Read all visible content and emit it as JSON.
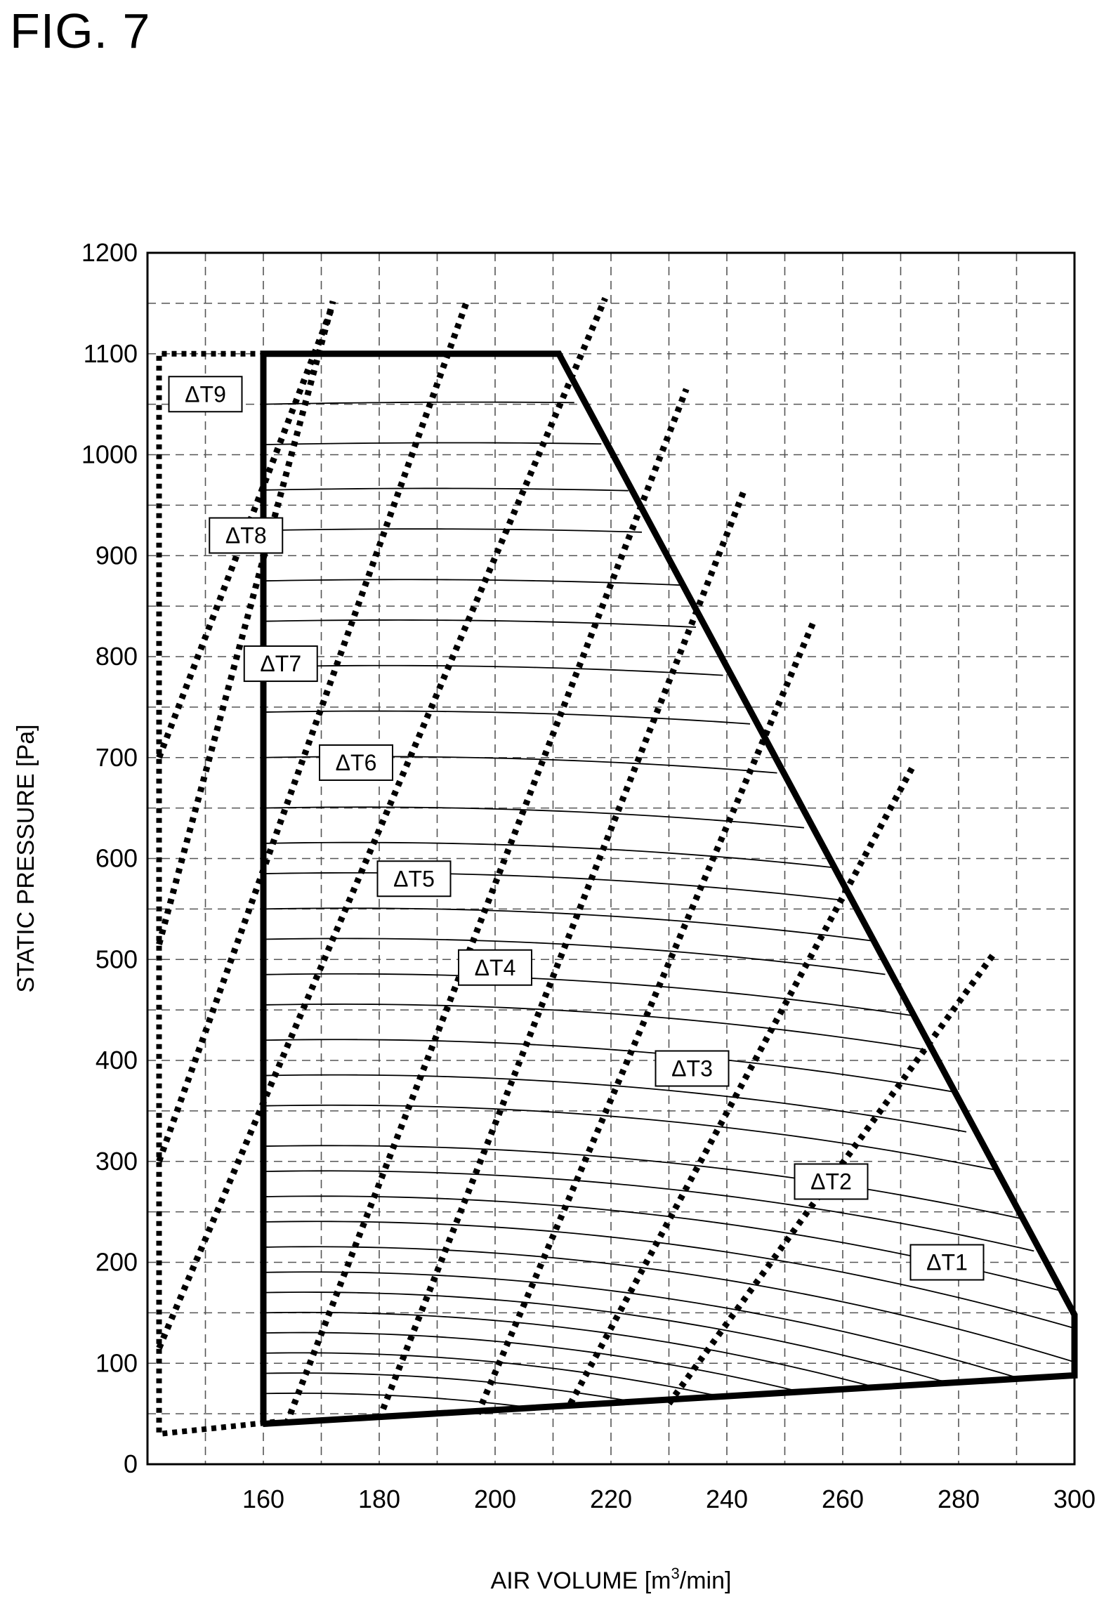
{
  "figure": {
    "label": "FIG. 7"
  },
  "colors": {
    "ink": "#000000",
    "grid": "#555555",
    "background": "#ffffff"
  },
  "chart_data": {
    "type": "line",
    "title": "",
    "xlabel_parts": [
      "AIR VOLUME [m",
      "3",
      "/min]"
    ],
    "ylabel": "STATIC PRESSURE [Pa]",
    "xlim": [
      140,
      300
    ],
    "ylim": [
      0,
      1200
    ],
    "x_ticks": [
      160,
      180,
      200,
      220,
      240,
      260,
      280,
      300
    ],
    "y_ticks": [
      0,
      100,
      200,
      300,
      400,
      500,
      600,
      700,
      800,
      900,
      1000,
      1100,
      1200
    ],
    "grid": true,
    "grid_style": "dashed",
    "x_minor_grid": [
      150,
      170,
      190,
      210,
      230,
      250,
      270,
      290
    ],
    "y_minor_grid": [
      50,
      150,
      250,
      350,
      450,
      550,
      650,
      750,
      850,
      950,
      1050,
      1150
    ],
    "operating_region": {
      "style": "thick-solid",
      "points": [
        [
          160,
          40
        ],
        [
          160,
          1100
        ],
        [
          211,
          1100
        ],
        [
          300,
          148
        ],
        [
          300,
          88
        ],
        [
          160,
          40
        ]
      ]
    },
    "outer_boundary": {
      "style": "dotted",
      "points": [
        [
          162,
          42
        ],
        [
          142,
          30
        ],
        [
          142,
          1100
        ],
        [
          160,
          1100
        ]
      ]
    },
    "temperature_lines": [
      {
        "label": "ΔT1",
        "points": [
          [
            230,
            60
          ],
          [
            286,
            505
          ]
        ],
        "label_at": [
          278,
          200
        ]
      },
      {
        "label": "ΔT2",
        "points": [
          [
            213,
            60
          ],
          [
            272,
            690
          ]
        ],
        "label_at": [
          258,
          280
        ]
      },
      {
        "label": "ΔT3",
        "points": [
          [
            197,
            50
          ],
          [
            255,
            835
          ]
        ],
        "label_at": [
          234,
          392
        ]
      },
      {
        "label": "ΔT4",
        "points": [
          [
            180,
            45
          ],
          [
            243,
            965
          ]
        ],
        "label_at": [
          200,
          492
        ]
      },
      {
        "label": "ΔT5",
        "points": [
          [
            164,
            40
          ],
          [
            233,
            1065
          ]
        ],
        "label_at": [
          186,
          580
        ]
      },
      {
        "label": "ΔT6",
        "points": [
          [
            142,
            115
          ],
          [
            219,
            1155
          ]
        ],
        "label_at": [
          176,
          695
        ]
      },
      {
        "label": "ΔT7",
        "points": [
          [
            142,
            300
          ],
          [
            195,
            1150
          ]
        ],
        "label_at": [
          163,
          793
        ]
      },
      {
        "label": "ΔT8",
        "points": [
          [
            142,
            515
          ],
          [
            172,
            1152
          ]
        ],
        "label_at": [
          157,
          920
        ]
      },
      {
        "label": "ΔT9",
        "points": [
          [
            142,
            700
          ],
          [
            172,
            1148
          ]
        ],
        "label_at": [
          150,
          1060
        ]
      }
    ],
    "fan_curves": {
      "note": "family of thin curves filling the operating region",
      "start_x": 160,
      "start_pressures": [
        1050,
        1010,
        965,
        925,
        875,
        835,
        790,
        745,
        700,
        650,
        615,
        585,
        550,
        520,
        485,
        455,
        420,
        385,
        355,
        315,
        290,
        265,
        240,
        215,
        190,
        170,
        150,
        130,
        110,
        90,
        70
      ]
    },
    "annotations": [
      "ΔT1",
      "ΔT2",
      "ΔT3",
      "ΔT4",
      "ΔT5",
      "ΔT6",
      "ΔT7",
      "ΔT8",
      "ΔT9"
    ]
  }
}
